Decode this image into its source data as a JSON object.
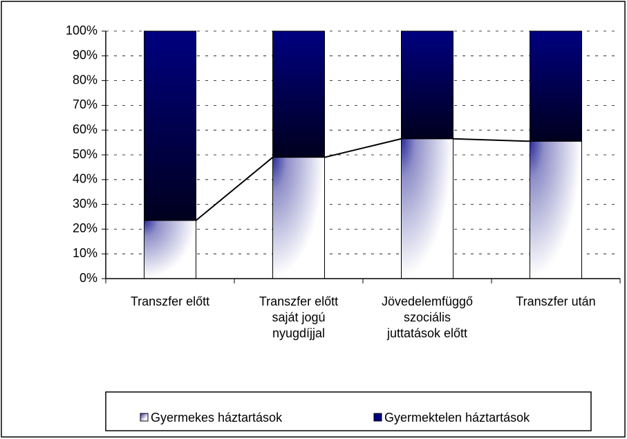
{
  "chart_data": {
    "type": "stacked_bar_percent",
    "categories": [
      "Transzfer  előtt",
      "Transzfer előtt\nsaját jogú\nnyugdíjjal",
      "Jövedelemfüggő\nszociális\njuttatások előtt",
      "Transzfer  után"
    ],
    "series": [
      {
        "name": "Gyermekes háztartások",
        "color": "#2b2b9c",
        "values": [
          23.5,
          49,
          56.5,
          55.5
        ]
      },
      {
        "name": "Gyermektelen háztartások",
        "color": "#000080",
        "values": [
          76.5,
          51,
          43.5,
          44.5
        ]
      }
    ],
    "ylim": [
      0,
      100
    ],
    "yticks": [
      {
        "value": 0,
        "label": "0%"
      },
      {
        "value": 10,
        "label": "10%"
      },
      {
        "value": 20,
        "label": "20%"
      },
      {
        "value": 30,
        "label": "30%"
      },
      {
        "value": 40,
        "label": "40%"
      },
      {
        "value": 50,
        "label": "50%"
      },
      {
        "value": 60,
        "label": "60%"
      },
      {
        "value": 70,
        "label": "70%"
      },
      {
        "value": 80,
        "label": "80%"
      },
      {
        "value": 90,
        "label": "90%"
      },
      {
        "value": 100,
        "label": "100%"
      }
    ],
    "grid": true,
    "series_lines": true,
    "legend": "bottom"
  }
}
